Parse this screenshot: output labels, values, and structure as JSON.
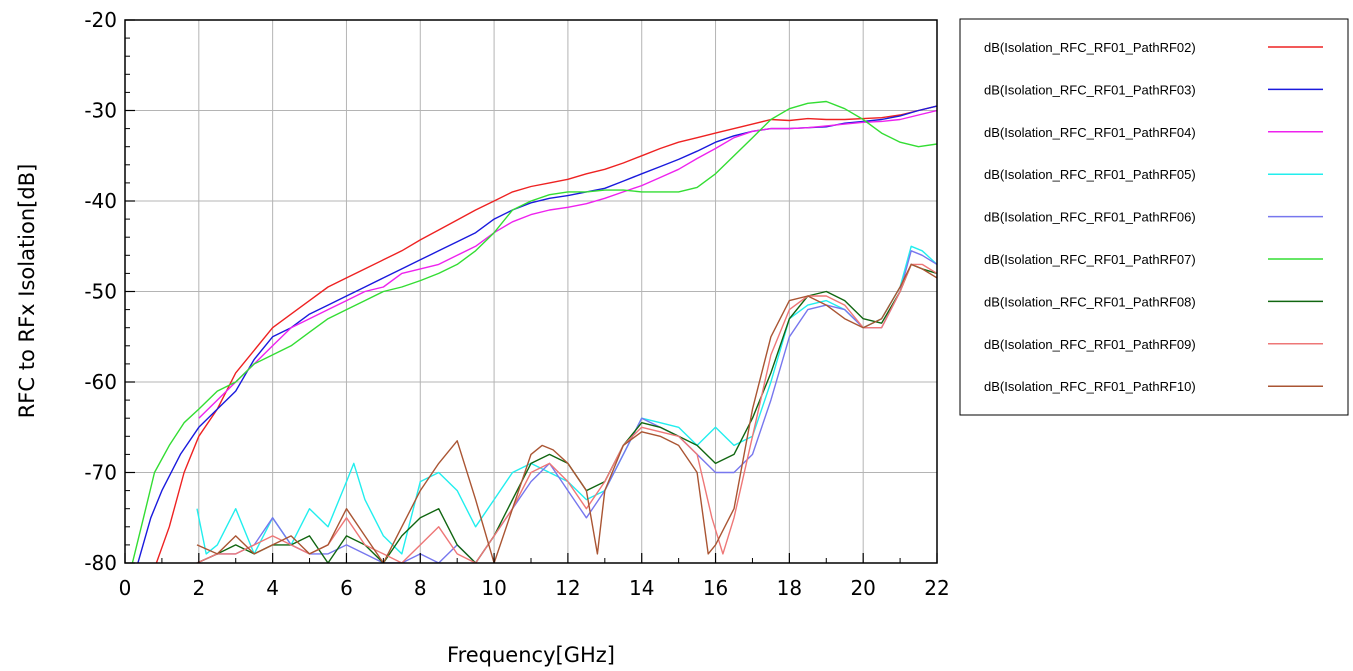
{
  "chart_data": {
    "type": "line",
    "xlabel": "Frequency[GHz]",
    "ylabel": "RFC to RFx Isolation[dB]",
    "xlim": [
      0,
      22
    ],
    "ylim": [
      -80,
      -20
    ],
    "xticks": [
      "0",
      "2",
      "4",
      "6",
      "8",
      "10",
      "12",
      "14",
      "16",
      "18",
      "20",
      "22"
    ],
    "yticks": [
      "-20",
      "-30",
      "-40",
      "-50",
      "-60",
      "-70",
      "-80"
    ],
    "grid": true,
    "legend_position": "right",
    "series": [
      {
        "name": "dB(Isolation_RFC_RF01_PathRF02)",
        "color": "#ee2222",
        "x": [
          0.85,
          1.2,
          1.6,
          2.0,
          2.5,
          3.0,
          3.5,
          4.0,
          4.5,
          5.0,
          5.5,
          6.0,
          6.5,
          7.0,
          7.5,
          8.0,
          8.5,
          9.0,
          9.5,
          10.0,
          10.5,
          11.0,
          11.5,
          12.0,
          12.5,
          13.0,
          13.5,
          14.0,
          14.5,
          15.0,
          15.5,
          16.0,
          16.5,
          17.0,
          17.5,
          18.0,
          18.5,
          19.0,
          19.5,
          20.0,
          20.5,
          21.0,
          21.5,
          22.0
        ],
        "y": [
          -80,
          -76,
          -70,
          -66,
          -63,
          -59,
          -56.5,
          -54,
          -52.5,
          -51,
          -49.5,
          -48.5,
          -47.5,
          -46.5,
          -45.5,
          -44.3,
          -43.2,
          -42.1,
          -41,
          -40,
          -39,
          -38.4,
          -38,
          -37.6,
          -37,
          -36.5,
          -35.8,
          -35,
          -34.2,
          -33.5,
          -33,
          -32.5,
          -32,
          -31.5,
          -31,
          -31.1,
          -30.9,
          -31,
          -31,
          -30.9,
          -30.8,
          -30.5,
          -30,
          -29.5
        ]
      },
      {
        "name": "dB(Isolation_RFC_RF01_PathRF03)",
        "color": "#1a1add",
        "x": [
          0.35,
          0.7,
          1.0,
          1.5,
          2.0,
          2.5,
          3.0,
          3.5,
          4.0,
          4.5,
          5.0,
          5.5,
          6.0,
          6.5,
          7.0,
          7.5,
          8.0,
          8.5,
          9.0,
          9.5,
          10.0,
          10.5,
          11.0,
          11.5,
          12.0,
          12.5,
          13.0,
          13.5,
          14.0,
          14.5,
          15.0,
          15.5,
          16.0,
          16.5,
          17.0,
          17.5,
          18.0,
          18.5,
          19.0,
          19.5,
          20.0,
          20.5,
          21.0,
          21.5,
          22.0
        ],
        "y": [
          -80,
          -75,
          -72,
          -68,
          -65,
          -63,
          -61,
          -57.5,
          -55,
          -54,
          -52.5,
          -51.5,
          -50.5,
          -49.5,
          -48.5,
          -47.5,
          -46.5,
          -45.5,
          -44.5,
          -43.5,
          -42,
          -41,
          -40.2,
          -39.7,
          -39.4,
          -39,
          -38.6,
          -37.8,
          -37,
          -36.2,
          -35.4,
          -34.5,
          -33.5,
          -32.8,
          -32.3,
          -32,
          -32,
          -31.9,
          -31.8,
          -31.4,
          -31.2,
          -31,
          -30.6,
          -30,
          -29.5
        ]
      },
      {
        "name": "dB(Isolation_RFC_RF01_PathRF04)",
        "color": "#ee22ee",
        "x": [
          2.0,
          2.5,
          3.0,
          3.5,
          4.0,
          4.5,
          5.0,
          5.5,
          6.0,
          6.5,
          7.0,
          7.5,
          8.0,
          8.5,
          9.0,
          9.5,
          10.0,
          10.5,
          11.0,
          11.5,
          12.0,
          12.5,
          13.0,
          13.5,
          14.0,
          14.5,
          15.0,
          15.5,
          16.0,
          16.5,
          17.0,
          17.5,
          18.0,
          18.5,
          19.0,
          19.5,
          20.0,
          20.5,
          21.0,
          21.5,
          22.0
        ],
        "y": [
          -64,
          -62,
          -60,
          -58,
          -56,
          -54,
          -53,
          -52,
          -51,
          -50,
          -49.5,
          -48,
          -47.5,
          -47,
          -46,
          -45,
          -43.5,
          -42.3,
          -41.5,
          -41,
          -40.7,
          -40.3,
          -39.7,
          -39,
          -38.3,
          -37.4,
          -36.5,
          -35.3,
          -34.2,
          -33,
          -32.3,
          -32,
          -32,
          -31.9,
          -31.7,
          -31.5,
          -31.3,
          -31.2,
          -31,
          -30.5,
          -30
        ]
      },
      {
        "name": "dB(Isolation_RFC_RF01_PathRF05)",
        "color": "#22eeee",
        "x": [
          1.95,
          2.2,
          2.5,
          3.0,
          3.5,
          4.0,
          4.5,
          5.0,
          5.5,
          6.0,
          6.2,
          6.5,
          7.0,
          7.5,
          8.0,
          8.5,
          9.0,
          9.5,
          10.0,
          10.5,
          11.0,
          11.5,
          12.0,
          12.5,
          13.0,
          13.5,
          14.0,
          14.5,
          15.0,
          15.5,
          16.0,
          16.5,
          17.0,
          17.5,
          18.0,
          18.5,
          19.0,
          19.5,
          20.0,
          20.5,
          21.0,
          21.3,
          21.6,
          22.0
        ],
        "y": [
          -74,
          -79,
          -78,
          -74,
          -79,
          -75,
          -78,
          -74,
          -76,
          -71,
          -69,
          -73,
          -77,
          -79,
          -71,
          -70,
          -72,
          -76,
          -73,
          -70,
          -69,
          -70,
          -71,
          -73,
          -72,
          -68,
          -64,
          -64.5,
          -65,
          -67,
          -65,
          -67,
          -66,
          -60,
          -53,
          -51.5,
          -51,
          -52,
          -54,
          -53,
          -49.5,
          -45,
          -45.5,
          -47
        ]
      },
      {
        "name": "dB(Isolation_RFC_RF01_PathRF06)",
        "color": "#7777ee",
        "x": [
          1.95,
          2.5,
          3.0,
          3.5,
          4.0,
          4.5,
          5.0,
          5.5,
          6.0,
          6.5,
          7.0,
          7.5,
          8.0,
          8.5,
          9.0,
          9.5,
          10.0,
          10.5,
          11.0,
          11.5,
          12.0,
          12.5,
          13.0,
          13.5,
          14.0,
          14.5,
          15.0,
          15.5,
          16.0,
          16.5,
          17.0,
          17.5,
          18.0,
          18.5,
          19.0,
          19.5,
          20.0,
          20.5,
          21.0,
          21.3,
          21.6,
          22.0
        ],
        "y": [
          -80,
          -79,
          -79,
          -78,
          -75,
          -78,
          -79,
          -79,
          -78,
          -79,
          -80,
          -80,
          -79,
          -80,
          -78,
          -80,
          -77,
          -74,
          -71,
          -69,
          -72,
          -75,
          -72,
          -68,
          -64,
          -65,
          -66,
          -68,
          -70,
          -70,
          -68,
          -62,
          -55,
          -52,
          -51.5,
          -52,
          -54,
          -54,
          -50,
          -45.5,
          -46,
          -47
        ]
      },
      {
        "name": "dB(Isolation_RFC_RF01_PathRF07)",
        "color": "#33dd33",
        "x": [
          0.2,
          0.5,
          0.8,
          1.2,
          1.6,
          2.0,
          2.5,
          3.0,
          3.5,
          4.0,
          4.5,
          5.0,
          5.5,
          6.0,
          6.5,
          7.0,
          7.5,
          8.0,
          8.5,
          9.0,
          9.5,
          10.0,
          10.5,
          11.0,
          11.5,
          12.0,
          12.5,
          13.0,
          13.5,
          14.0,
          14.5,
          15.0,
          15.5,
          16.0,
          16.5,
          17.0,
          17.5,
          18.0,
          18.5,
          19.0,
          19.5,
          20.0,
          20.5,
          21.0,
          21.5,
          22.0
        ],
        "y": [
          -80,
          -75,
          -70,
          -67,
          -64.5,
          -63,
          -61,
          -60,
          -58,
          -57,
          -56,
          -54.5,
          -53,
          -52,
          -51,
          -50,
          -49.5,
          -48.8,
          -48,
          -47,
          -45.5,
          -43.5,
          -41,
          -40,
          -39.3,
          -39,
          -39,
          -38.8,
          -38.8,
          -39,
          -39,
          -39,
          -38.5,
          -37,
          -35,
          -33,
          -31,
          -29.8,
          -29.2,
          -29,
          -29.8,
          -31,
          -32.5,
          -33.5,
          -34,
          -33.7
        ]
      },
      {
        "name": "dB(Isolation_RFC_RF01_PathRF08)",
        "color": "#116611",
        "x": [
          1.95,
          2.5,
          3.0,
          3.5,
          4.0,
          4.5,
          5.0,
          5.5,
          6.0,
          6.5,
          7.0,
          7.5,
          8.0,
          8.5,
          9.0,
          9.5,
          10.0,
          10.5,
          11.0,
          11.5,
          12.0,
          12.5,
          13.0,
          13.5,
          14.0,
          14.5,
          15.0,
          15.5,
          16.0,
          16.5,
          17.0,
          17.5,
          18.0,
          18.5,
          19.0,
          19.5,
          20.0,
          20.5,
          21.0,
          21.3,
          21.6,
          22.0
        ],
        "y": [
          -80,
          -79,
          -78,
          -79,
          -78,
          -78,
          -77,
          -80,
          -77,
          -78,
          -80,
          -77,
          -75,
          -74,
          -78,
          -80,
          -77,
          -73,
          -69,
          -68,
          -69,
          -72,
          -71,
          -67,
          -64.5,
          -65,
          -66,
          -67,
          -69,
          -68,
          -64,
          -59,
          -53,
          -50.5,
          -50,
          -51,
          -53,
          -53.5,
          -50,
          -47,
          -47.5,
          -48
        ]
      },
      {
        "name": "dB(Isolation_RFC_RF01_PathRF09)",
        "color": "#ee7777",
        "x": [
          1.95,
          2.5,
          3.0,
          3.5,
          4.0,
          4.5,
          5.0,
          5.5,
          6.0,
          6.5,
          7.0,
          7.5,
          8.0,
          8.5,
          9.0,
          9.5,
          10.0,
          10.5,
          11.0,
          11.5,
          12.0,
          12.5,
          13.0,
          13.5,
          14.0,
          14.5,
          15.0,
          15.5,
          15.9,
          16.2,
          16.5,
          17.0,
          17.5,
          18.0,
          18.5,
          19.0,
          19.5,
          20.0,
          20.5,
          21.0,
          21.3,
          21.6,
          22.0
        ],
        "y": [
          -80,
          -79,
          -79,
          -78,
          -77,
          -78,
          -79,
          -78,
          -75,
          -78,
          -79,
          -80,
          -78,
          -76,
          -79,
          -80,
          -77,
          -74,
          -70,
          -69,
          -71,
          -74,
          -71,
          -67,
          -65,
          -65.5,
          -66,
          -68,
          -75,
          -79,
          -75,
          -66,
          -57,
          -52,
          -50.5,
          -50.5,
          -51.5,
          -54,
          -54,
          -50,
          -47,
          -47,
          -48
        ]
      },
      {
        "name": "dB(Isolation_RFC_RF01_PathRF10)",
        "color": "#aa5533",
        "x": [
          1.95,
          2.5,
          3.0,
          3.5,
          4.0,
          4.5,
          5.0,
          5.5,
          6.0,
          6.5,
          7.0,
          7.5,
          8.0,
          8.5,
          9.0,
          9.5,
          10.0,
          10.5,
          11.0,
          11.3,
          11.6,
          12.0,
          12.5,
          12.8,
          13.0,
          13.5,
          14.0,
          14.5,
          15.0,
          15.5,
          15.8,
          16.0,
          16.5,
          17.0,
          17.5,
          18.0,
          18.5,
          19.0,
          19.5,
          20.0,
          20.5,
          21.0,
          21.3,
          21.6,
          22.0
        ],
        "y": [
          -78,
          -79,
          -77,
          -79,
          -78,
          -77,
          -79,
          -78,
          -74,
          -77,
          -80,
          -76,
          -72,
          -69,
          -66.5,
          -73,
          -80,
          -74,
          -68,
          -67,
          -67.5,
          -69,
          -72,
          -79,
          -72,
          -67,
          -65.5,
          -66,
          -67,
          -70,
          -79,
          -78,
          -74,
          -63,
          -55,
          -51,
          -50.5,
          -51.5,
          -53,
          -54,
          -53,
          -49.5,
          -47,
          -47.5,
          -48.5
        ]
      }
    ]
  }
}
